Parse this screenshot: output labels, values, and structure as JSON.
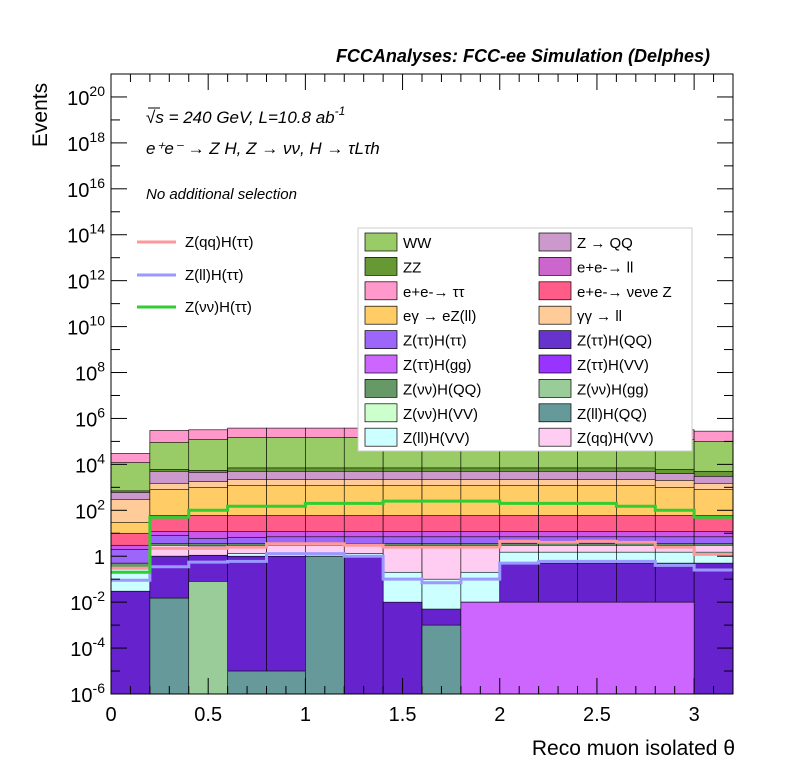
{
  "chart_data": {
    "type": "stacked-histogram",
    "title": "FCCAnalyses: FCC-ee Simulation (Delphes)",
    "energy_label": "= 240 GeV, L=10.8 ab",
    "sqrt_symbol": "√s",
    "lumi_exponent": "-1",
    "process_label": "e⁺e⁻ → Z H, Z → νν, H → τLτh",
    "selection_label": "No additional selection",
    "xlabel": "Reco muon isolated θ",
    "ylabel": "Events",
    "xlim": [
      0,
      3.2
    ],
    "ylim": [
      1e-06,
      1e+21
    ],
    "log_y": true,
    "x_ticks": [
      "0",
      "0.5",
      "1",
      "1.5",
      "2",
      "2.5",
      "3"
    ],
    "y_ticks": [
      {
        "mantissa": "10",
        "exp": "-6"
      },
      {
        "mantissa": "10",
        "exp": "-4"
      },
      {
        "mantissa": "10",
        "exp": "-2"
      },
      {
        "mantissa": "1",
        "exp": ""
      },
      {
        "mantissa": "10",
        "exp": "2"
      },
      {
        "mantissa": "10",
        "exp": "4"
      },
      {
        "mantissa": "10",
        "exp": "6"
      },
      {
        "mantissa": "10",
        "exp": "8"
      },
      {
        "mantissa": "10",
        "exp": "10"
      },
      {
        "mantissa": "10",
        "exp": "12"
      },
      {
        "mantissa": "10",
        "exp": "14"
      },
      {
        "mantissa": "10",
        "exp": "16"
      },
      {
        "mantissa": "10",
        "exp": "18"
      },
      {
        "mantissa": "10",
        "exp": "20"
      }
    ],
    "bin_edges": [
      0,
      0.2,
      0.4,
      0.6,
      0.8,
      1.0,
      1.2,
      1.4,
      1.6,
      1.8,
      2.0,
      2.2,
      2.4,
      2.6,
      2.8,
      3.0,
      3.2
    ],
    "stack_boundaries": [
      {
        "color": "#6622cc",
        "values": [
          0.03,
          1.0,
          1.1,
          1.0,
          1.0,
          1.0,
          1.0,
          0.01,
          0.005,
          0.01,
          0.5,
          0.5,
          0.5,
          0.5,
          0.5,
          0.5,
          null
        ]
      },
      {
        "color": "#ccffff",
        "values": [
          0.3,
          1.0,
          1.1,
          1.3,
          1.3,
          1.3,
          1.3,
          0.2,
          0.1,
          0.2,
          1.5,
          1.5,
          1.5,
          1.5,
          1.5,
          1.5,
          null
        ]
      },
      {
        "color": "#ffccf2",
        "values": [
          0.3,
          3.0,
          2.8,
          3.0,
          3.0,
          3.0,
          3.0,
          3.0,
          3.0,
          3.0,
          3.0,
          3.0,
          3.0,
          3.0,
          3.0,
          3.0,
          null
        ]
      },
      {
        "color": "#669966",
        "values": [
          0.5,
          3.5,
          3.5,
          3.5,
          3.5,
          3.5,
          3.5,
          3.5,
          3.5,
          3.5,
          3.5,
          3.5,
          3.5,
          3.5,
          3.5,
          3.5,
          null
        ]
      },
      {
        "color": "#9b66f9",
        "values": [
          2.0,
          8.0,
          6.0,
          6.5,
          7.0,
          7.0,
          7.0,
          7.0,
          7.0,
          7.0,
          7.0,
          7.0,
          7.0,
          7.0,
          7.0,
          7.0,
          null
        ]
      },
      {
        "color": "#cc55ee",
        "values": [
          3.0,
          12.0,
          12.0,
          12.0,
          12.0,
          12.0,
          12.0,
          12.0,
          12.0,
          12.0,
          12.0,
          12.0,
          12.0,
          12.0,
          12.0,
          12.0,
          null
        ]
      },
      {
        "color": "#ff5c8a",
        "values": [
          10.0,
          60.0,
          60.0,
          60.0,
          60.0,
          60.0,
          60.0,
          60.0,
          60.0,
          60.0,
          60.0,
          60.0,
          60.0,
          60.0,
          60.0,
          60.0,
          null
        ]
      },
      {
        "color": "#ffcc66",
        "values": [
          30,
          800,
          1000,
          1200,
          1200,
          1200,
          1200,
          1200,
          1200,
          1200,
          1200,
          1200,
          1200,
          1200,
          1000,
          800,
          null
        ]
      },
      {
        "color": "#ffcc99",
        "values": [
          300,
          1500,
          1800,
          2200,
          2200,
          2200,
          2200,
          2200,
          2200,
          2200,
          2200,
          2200,
          2200,
          2200,
          2000,
          1500,
          null
        ]
      },
      {
        "color": "#cc99cc",
        "values": [
          600,
          5000,
          4500,
          5000,
          5000,
          5000,
          5000,
          5000,
          5000,
          5000,
          5000,
          5000,
          5000,
          5000,
          4000,
          3000,
          null
        ]
      },
      {
        "color": "#669933",
        "values": [
          700,
          6000,
          5500,
          7000,
          7000,
          7000,
          7000,
          7000,
          7000,
          7000,
          7000,
          7000,
          7000,
          7000,
          6000,
          5000,
          null
        ]
      },
      {
        "color": "#99cc66",
        "values": [
          12000,
          90000,
          120000,
          150000,
          150000,
          150000,
          150000,
          150000,
          150000,
          150000,
          150000,
          150000,
          150000,
          150000,
          120000,
          100000,
          null
        ]
      },
      {
        "color": "#ff99cc",
        "values": [
          30000,
          300000,
          320000,
          380000,
          380000,
          380000,
          380000,
          380000,
          380000,
          380000,
          380000,
          380000,
          380000,
          380000,
          320000,
          280000,
          null
        ]
      }
    ],
    "overlays": [
      {
        "name": "Z(qq)H(ττ)",
        "color": "#ff9999",
        "values": [
          0.3,
          2.2,
          2.2,
          2.5,
          3.5,
          3.5,
          3.0,
          2.5,
          2.5,
          2.5,
          4.5,
          4.0,
          4.5,
          4.0,
          2.5,
          1.2,
          null
        ]
      },
      {
        "name": "Z(ll)H(ττ)",
        "color": "#9999ff",
        "values": [
          0.09,
          0.35,
          0.55,
          0.6,
          1.3,
          1.3,
          1.0,
          0.1,
          0.07,
          0.1,
          0.5,
          0.6,
          0.6,
          0.6,
          0.4,
          0.25,
          null
        ]
      },
      {
        "name": "Z(νν)H(ττ)",
        "color": "#33cc33",
        "values": [
          0.2,
          50,
          100,
          150,
          150,
          200,
          200,
          250,
          250,
          250,
          200,
          200,
          200,
          150,
          100,
          50,
          1e-06
        ]
      }
    ],
    "low_contributions": [
      {
        "name": "Z(ll)H(QQ)",
        "color": "#669999",
        "bins": [
          [
            0.2,
            0.4,
            0.015
          ],
          [
            0.6,
            1.0,
            1e-05
          ],
          [
            1.0,
            1.2,
            1.0
          ],
          [
            1.6,
            1.8,
            0.001
          ]
        ]
      },
      {
        "name": "Z(νν)H(gg)",
        "color": "#99cc99",
        "bins": [
          [
            0.4,
            0.6,
            0.08
          ]
        ]
      },
      {
        "name": "Z(ττ)H(VV)",
        "color": "#cc66ff",
        "bins": [
          [
            1.8,
            3.0,
            0.01
          ]
        ]
      }
    ],
    "legend_left": [
      {
        "name": "Z(qq)H(ττ)",
        "color": "#ff9999"
      },
      {
        "name": "Z(ll)H(ττ)",
        "color": "#9999ff"
      },
      {
        "name": "Z(νν)H(ττ)",
        "color": "#33cc33"
      }
    ],
    "legend_right": [
      {
        "name": "WW",
        "color": "#99cc66"
      },
      {
        "name": "Z → QQ",
        "color": "#cc99cc"
      },
      {
        "name": "ZZ",
        "color": "#669933"
      },
      {
        "name": "e+e-→ ll",
        "color": "#cc66cc"
      },
      {
        "name": "e+e-→ ττ",
        "color": "#ff99cc"
      },
      {
        "name": "e+e-→ νeνe Z",
        "color": "#ff5c8a"
      },
      {
        "name": "eγ → eZ(ll)",
        "color": "#ffcc66"
      },
      {
        "name": "γγ → ll",
        "color": "#ffcc99"
      },
      {
        "name": "Z(ττ)H(ττ)",
        "color": "#9b66f9"
      },
      {
        "name": "Z(ττ)H(QQ)",
        "color": "#6633cc"
      },
      {
        "name": "Z(ττ)H(gg)",
        "color": "#cc66ff"
      },
      {
        "name": "Z(ττ)H(VV)",
        "color": "#9933ff"
      },
      {
        "name": "Z(νν)H(QQ)",
        "color": "#669966"
      },
      {
        "name": "Z(νν)H(gg)",
        "color": "#99cc99"
      },
      {
        "name": "Z(νν)H(VV)",
        "color": "#ccffcc"
      },
      {
        "name": "Z(ll)H(QQ)",
        "color": "#669999"
      },
      {
        "name": "Z(ll)H(VV)",
        "color": "#ccffff"
      },
      {
        "name": "Z(qq)H(VV)",
        "color": "#ffccf2"
      }
    ]
  }
}
